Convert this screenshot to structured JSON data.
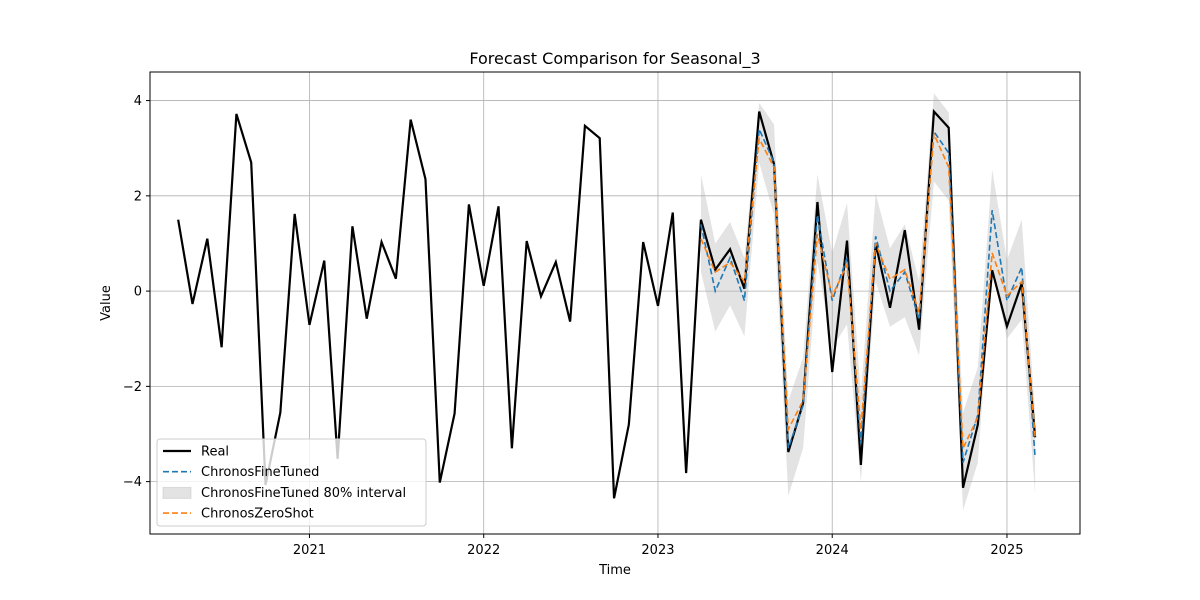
{
  "chart_data": {
    "type": "line",
    "title": "Forecast Comparison for Seasonal_3",
    "xlabel": "Time",
    "ylabel": "Value",
    "x_ticks": [
      {
        "value": "2021-01",
        "label": "2021"
      },
      {
        "value": "2022-01",
        "label": "2022"
      },
      {
        "value": "2023-01",
        "label": "2023"
      },
      {
        "value": "2024-01",
        "label": "2024"
      },
      {
        "value": "2025-01",
        "label": "2025"
      }
    ],
    "y_ticks": [
      -4,
      -2,
      0,
      2,
      4
    ],
    "xlim": [
      "2020-02-02",
      "2025-06-03"
    ],
    "ylim": [
      -5.1,
      4.6
    ],
    "grid": true,
    "legend_position": "lower-left",
    "colors": {
      "real": "#000000",
      "fine_tuned": "#1f77b4",
      "interval": "#b0b0b0",
      "zero_shot": "#ff7f0e"
    },
    "series": [
      {
        "name": "Real",
        "style": "solid",
        "x": [
          "2020-04",
          "2020-05",
          "2020-06",
          "2020-07",
          "2020-08",
          "2020-09",
          "2020-10",
          "2020-11",
          "2020-12",
          "2021-01",
          "2021-02",
          "2021-03",
          "2021-04",
          "2021-05",
          "2021-06",
          "2021-07",
          "2021-08",
          "2021-09",
          "2021-10",
          "2021-11",
          "2021-12",
          "2022-01",
          "2022-02",
          "2022-03",
          "2022-04",
          "2022-05",
          "2022-06",
          "2022-07",
          "2022-08",
          "2022-09",
          "2022-10",
          "2022-11",
          "2022-12",
          "2023-01",
          "2023-02",
          "2023-03",
          "2023-04",
          "2023-05",
          "2023-06",
          "2023-07",
          "2023-08",
          "2023-09",
          "2023-10",
          "2023-11",
          "2023-12",
          "2024-01",
          "2024-02",
          "2024-03",
          "2024-04",
          "2024-05",
          "2024-06",
          "2024-07",
          "2024-08",
          "2024-09",
          "2024-10",
          "2024-11",
          "2024-12",
          "2025-01",
          "2025-02",
          "2025-03"
        ],
        "values": [
          1.5,
          -0.27,
          1.1,
          -1.18,
          3.72,
          2.7,
          -4.07,
          -2.55,
          1.62,
          -0.71,
          0.64,
          -3.52,
          1.36,
          -0.58,
          1.03,
          0.26,
          3.6,
          2.35,
          -4.02,
          -2.57,
          1.82,
          0.11,
          1.78,
          -3.3,
          1.05,
          -0.11,
          0.61,
          -0.64,
          3.47,
          3.21,
          -4.35,
          -2.8,
          1.03,
          -0.31,
          1.65,
          -3.82,
          1.5,
          0.45,
          0.88,
          0.05,
          3.77,
          2.67,
          -3.38,
          -2.35,
          1.87,
          -1.7,
          1.06,
          -3.65,
          1.0,
          -0.35,
          1.28,
          -0.81,
          3.77,
          3.43,
          -4.13,
          -2.8,
          0.44,
          -0.74,
          0.16,
          -3.07
        ]
      },
      {
        "name": "ChronosFineTuned",
        "style": "dashed",
        "x": [
          "2023-04",
          "2023-05",
          "2023-06",
          "2023-07",
          "2023-08",
          "2023-09",
          "2023-10",
          "2023-11",
          "2023-12",
          "2024-01",
          "2024-02",
          "2024-03",
          "2024-04",
          "2024-05",
          "2024-06",
          "2024-07",
          "2024-08",
          "2024-09",
          "2024-10",
          "2024-11",
          "2024-12",
          "2025-01",
          "2025-02",
          "2025-03"
        ],
        "values": [
          1.4,
          0.0,
          0.7,
          -0.2,
          3.4,
          2.7,
          -3.3,
          -2.4,
          1.6,
          -0.2,
          0.7,
          -3.2,
          1.15,
          0.0,
          0.4,
          -0.6,
          3.35,
          2.9,
          -3.6,
          -2.6,
          1.7,
          -0.2,
          0.5,
          -3.5
        ]
      },
      {
        "name": "ChronosZeroShot",
        "style": "dashed",
        "x": [
          "2023-04",
          "2023-05",
          "2023-06",
          "2023-07",
          "2023-08",
          "2023-09",
          "2023-10",
          "2023-11",
          "2023-12",
          "2024-01",
          "2024-02",
          "2024-03",
          "2024-04",
          "2024-05",
          "2024-06",
          "2024-07",
          "2024-08",
          "2024-09",
          "2024-10",
          "2024-11",
          "2024-12",
          "2025-01",
          "2025-02",
          "2025-03"
        ],
        "values": [
          1.1,
          0.4,
          0.6,
          0.2,
          3.2,
          2.6,
          -2.9,
          -2.3,
          1.2,
          -0.1,
          0.55,
          -2.9,
          1.0,
          0.25,
          0.45,
          -0.45,
          3.3,
          2.6,
          -3.3,
          -2.65,
          0.8,
          -0.1,
          0.2,
          -3.05
        ]
      }
    ],
    "interval": {
      "name": "ChronosFineTuned 80% interval",
      "x": [
        "2023-04",
        "2023-05",
        "2023-06",
        "2023-07",
        "2023-08",
        "2023-09",
        "2023-10",
        "2023-11",
        "2023-12",
        "2024-01",
        "2024-02",
        "2024-03",
        "2024-04",
        "2024-05",
        "2024-06",
        "2024-07",
        "2024-08",
        "2024-09",
        "2024-10",
        "2024-11",
        "2024-12",
        "2025-01",
        "2025-02",
        "2025-03"
      ],
      "lower": [
        0.4,
        -0.85,
        -0.3,
        -0.95,
        2.7,
        1.6,
        -4.3,
        -3.3,
        0.6,
        -1.2,
        -0.7,
        -4.0,
        0.2,
        -0.75,
        -0.55,
        -1.35,
        2.3,
        1.9,
        -4.6,
        -3.6,
        0.5,
        -1.0,
        -0.6,
        -4.25
      ],
      "upper": [
        2.45,
        1.0,
        1.45,
        0.7,
        3.95,
        3.5,
        -2.3,
        -1.4,
        2.45,
        0.8,
        1.85,
        -2.2,
        2.05,
        0.9,
        1.4,
        0.2,
        4.15,
        3.75,
        -2.55,
        -1.6,
        2.55,
        0.65,
        1.5,
        -2.6
      ]
    },
    "legend": [
      {
        "label": "Real",
        "kind": "line",
        "color": "#000000",
        "dash": false
      },
      {
        "label": "ChronosFineTuned",
        "kind": "line",
        "color": "#1f77b4",
        "dash": true
      },
      {
        "label": "ChronosFineTuned 80% interval",
        "kind": "patch",
        "color": "#b0b0b0",
        "dash": false
      },
      {
        "label": "ChronosZeroShot",
        "kind": "line",
        "color": "#ff7f0e",
        "dash": true
      }
    ]
  }
}
